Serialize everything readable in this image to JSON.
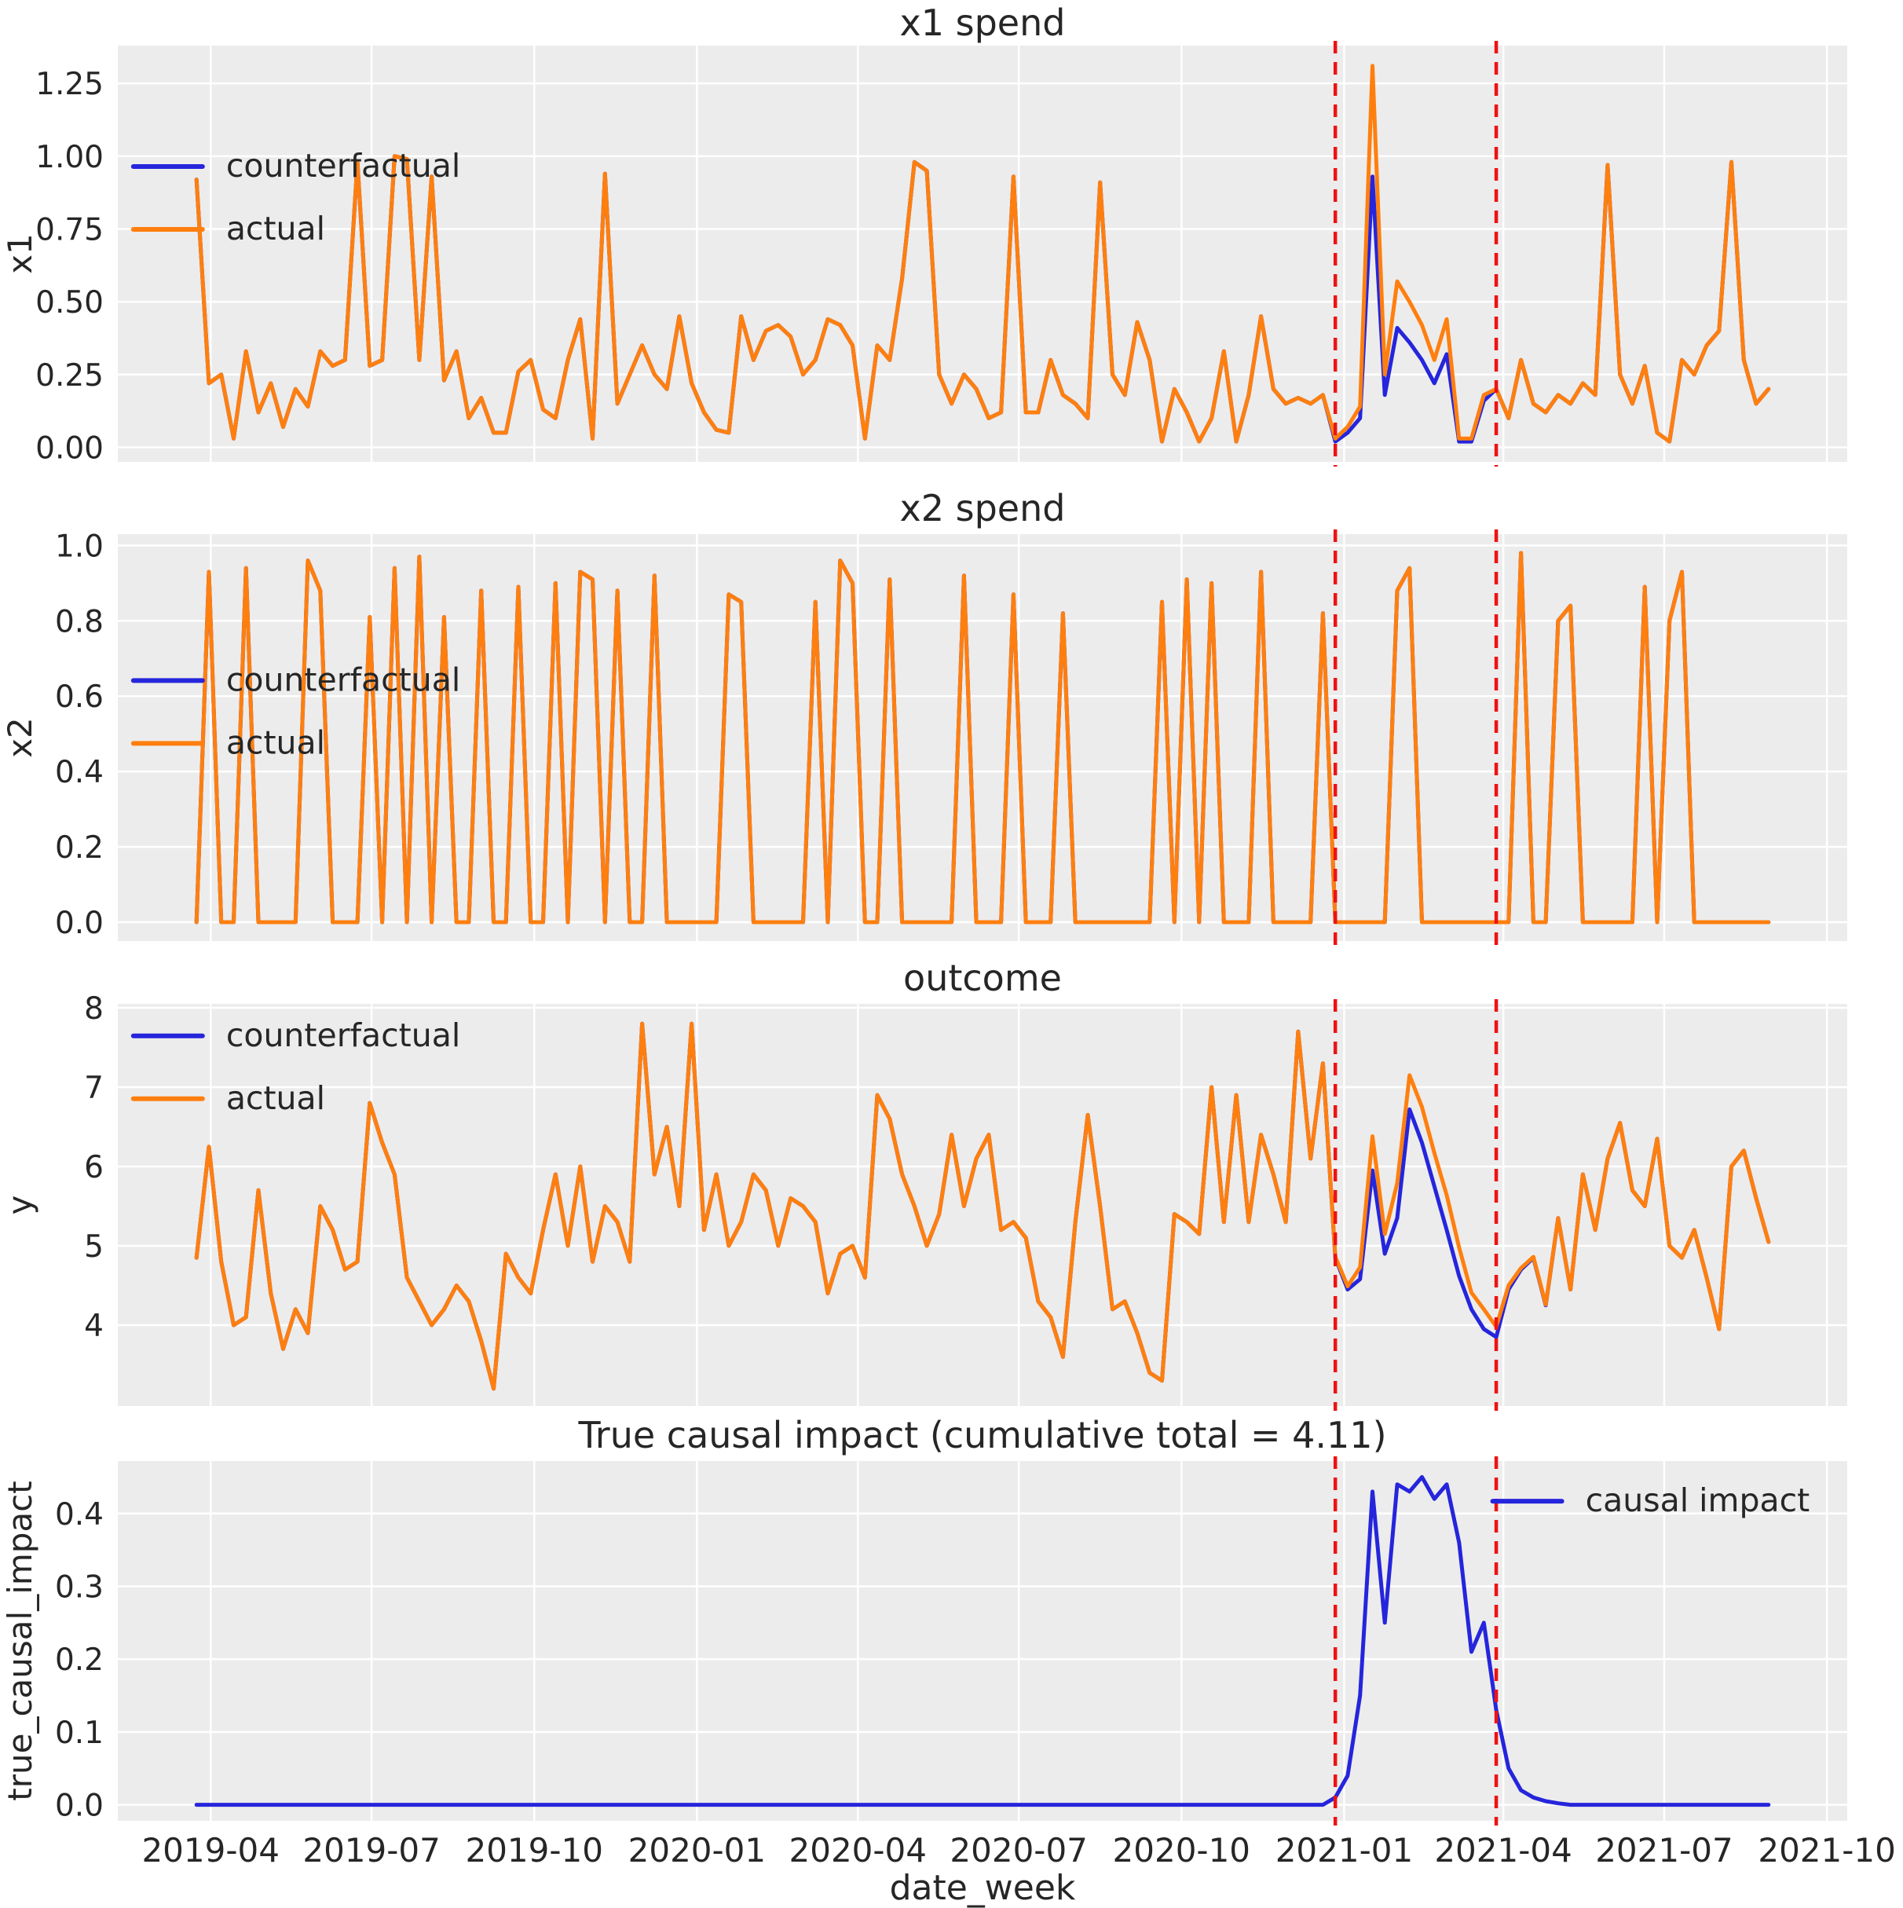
{
  "figure": {
    "background": "#ffffff",
    "axes_background": "#ececec",
    "grid_color": "#ffffff",
    "text_color": "#262626",
    "colors": {
      "counterfactual": "#2525dc",
      "actual": "#ff7f0e",
      "vline": "#ee1212"
    }
  },
  "x_axis": {
    "label": "date_week",
    "ticks": [
      {
        "label": "2019-04",
        "day": 8
      },
      {
        "label": "2019-07",
        "day": 99
      },
      {
        "label": "2019-10",
        "day": 191
      },
      {
        "label": "2020-01",
        "day": 283
      },
      {
        "label": "2020-04",
        "day": 374
      },
      {
        "label": "2020-07",
        "day": 465
      },
      {
        "label": "2020-10",
        "day": 557
      },
      {
        "label": "2021-01",
        "day": 649
      },
      {
        "label": "2021-04",
        "day": 739
      },
      {
        "label": "2021-07",
        "day": 830
      },
      {
        "label": "2021-10",
        "day": 922
      }
    ],
    "domain_days": [
      -44.5,
      933.5
    ],
    "week_step_days": 7
  },
  "intervention": {
    "vline_days": [
      644,
      735
    ],
    "vline_style": "dashed"
  },
  "chart_data": [
    {
      "type": "line",
      "title": "x1 spend",
      "ylabel": "x1",
      "ylim": [
        -0.05,
        1.38
      ],
      "yticks": [
        {
          "v": 0.0,
          "label": "0.00"
        },
        {
          "v": 0.25,
          "label": "0.25"
        },
        {
          "v": 0.5,
          "label": "0.50"
        },
        {
          "v": 0.75,
          "label": "0.75"
        },
        {
          "v": 1.0,
          "label": "1.00"
        },
        {
          "v": 1.25,
          "label": "1.25"
        }
      ],
      "legend_position": "mid-left",
      "series": [
        {
          "name": "counterfactual",
          "color": "#2525dc",
          "values": [
            0.92,
            0.22,
            0.25,
            0.03,
            0.33,
            0.12,
            0.22,
            0.07,
            0.2,
            0.14,
            0.33,
            0.28,
            0.3,
            0.98,
            0.28,
            0.3,
            1.0,
            0.99,
            0.3,
            0.93,
            0.23,
            0.33,
            0.1,
            0.17,
            0.05,
            0.05,
            0.26,
            0.3,
            0.13,
            0.1,
            0.3,
            0.44,
            0.03,
            0.94,
            0.15,
            0.25,
            0.35,
            0.25,
            0.2,
            0.45,
            0.22,
            0.12,
            0.06,
            0.05,
            0.45,
            0.3,
            0.4,
            0.42,
            0.38,
            0.25,
            0.3,
            0.44,
            0.42,
            0.35,
            0.03,
            0.35,
            0.3,
            0.58,
            0.98,
            0.95,
            0.25,
            0.15,
            0.25,
            0.2,
            0.1,
            0.12,
            0.93,
            0.12,
            0.12,
            0.3,
            0.18,
            0.15,
            0.1,
            0.91,
            0.25,
            0.18,
            0.43,
            0.3,
            0.02,
            0.2,
            0.12,
            0.02,
            0.1,
            0.33,
            0.02,
            0.18,
            0.45,
            0.2,
            0.15,
            0.17,
            0.15,
            0.18,
            0.02,
            0.05,
            0.1,
            0.93,
            0.18,
            0.41,
            0.36,
            0.3,
            0.22,
            0.32,
            0.02,
            0.02,
            0.16,
            0.2,
            0.1,
            0.3,
            0.15,
            0.12,
            0.18,
            0.15,
            0.22,
            0.18,
            0.97,
            0.25,
            0.15,
            0.28,
            0.05,
            0.02,
            0.3,
            0.25,
            0.35,
            0.4,
            0.98,
            0.3,
            0.15,
            0.2
          ]
        },
        {
          "name": "actual",
          "color": "#ff7f0e",
          "values": [
            0.92,
            0.22,
            0.25,
            0.03,
            0.33,
            0.12,
            0.22,
            0.07,
            0.2,
            0.14,
            0.33,
            0.28,
            0.3,
            0.98,
            0.28,
            0.3,
            1.0,
            0.99,
            0.3,
            0.93,
            0.23,
            0.33,
            0.1,
            0.17,
            0.05,
            0.05,
            0.26,
            0.3,
            0.13,
            0.1,
            0.3,
            0.44,
            0.03,
            0.94,
            0.15,
            0.25,
            0.35,
            0.25,
            0.2,
            0.45,
            0.22,
            0.12,
            0.06,
            0.05,
            0.45,
            0.3,
            0.4,
            0.42,
            0.38,
            0.25,
            0.3,
            0.44,
            0.42,
            0.35,
            0.03,
            0.35,
            0.3,
            0.58,
            0.98,
            0.95,
            0.25,
            0.15,
            0.25,
            0.2,
            0.1,
            0.12,
            0.93,
            0.12,
            0.12,
            0.3,
            0.18,
            0.15,
            0.1,
            0.91,
            0.25,
            0.18,
            0.43,
            0.3,
            0.02,
            0.2,
            0.12,
            0.02,
            0.1,
            0.33,
            0.02,
            0.18,
            0.45,
            0.2,
            0.15,
            0.17,
            0.15,
            0.18,
            0.03,
            0.07,
            0.14,
            1.31,
            0.25,
            0.57,
            0.5,
            0.42,
            0.3,
            0.44,
            0.03,
            0.03,
            0.18,
            0.2,
            0.1,
            0.3,
            0.15,
            0.12,
            0.18,
            0.15,
            0.22,
            0.18,
            0.97,
            0.25,
            0.15,
            0.28,
            0.05,
            0.02,
            0.3,
            0.25,
            0.35,
            0.4,
            0.98,
            0.3,
            0.15,
            0.2
          ]
        }
      ]
    },
    {
      "type": "line",
      "title": "x2 spend",
      "ylabel": "x2",
      "ylim": [
        -0.05,
        1.03
      ],
      "yticks": [
        {
          "v": 0.0,
          "label": "0.0"
        },
        {
          "v": 0.2,
          "label": "0.2"
        },
        {
          "v": 0.4,
          "label": "0.4"
        },
        {
          "v": 0.6,
          "label": "0.6"
        },
        {
          "v": 0.8,
          "label": "0.8"
        },
        {
          "v": 1.0,
          "label": "1.0"
        }
      ],
      "legend_position": "mid-left",
      "series": [
        {
          "name": "counterfactual",
          "color": "#2525dc",
          "values": [
            0,
            0.93,
            0,
            0,
            0.94,
            0,
            0,
            0,
            0,
            0.96,
            0.88,
            0,
            0,
            0,
            0.81,
            0,
            0.94,
            0,
            0.97,
            0,
            0.81,
            0,
            0,
            0.88,
            0,
            0,
            0.89,
            0,
            0,
            0.9,
            0,
            0.93,
            0.91,
            0,
            0.88,
            0,
            0,
            0.92,
            0,
            0,
            0,
            0,
            0,
            0.87,
            0.85,
            0,
            0,
            0,
            0,
            0,
            0.85,
            0,
            0.96,
            0.9,
            0,
            0,
            0.91,
            0,
            0,
            0,
            0,
            0,
            0.92,
            0,
            0,
            0,
            0.87,
            0,
            0,
            0,
            0.82,
            0,
            0,
            0,
            0,
            0,
            0,
            0,
            0.85,
            0,
            0.91,
            0,
            0.9,
            0,
            0,
            0,
            0.93,
            0,
            0,
            0,
            0,
            0.82,
            0,
            0,
            0,
            0,
            0,
            0.88,
            0.94,
            0,
            0,
            0,
            0,
            0,
            0,
            0,
            0,
            0.98,
            0,
            0,
            0.8,
            0.84,
            0,
            0,
            0,
            0,
            0,
            0.89,
            0,
            0.8,
            0.93,
            0,
            0,
            0,
            0,
            0,
            0,
            0
          ]
        },
        {
          "name": "actual",
          "color": "#ff7f0e",
          "values": [
            0,
            0.93,
            0,
            0,
            0.94,
            0,
            0,
            0,
            0,
            0.96,
            0.88,
            0,
            0,
            0,
            0.81,
            0,
            0.94,
            0,
            0.97,
            0,
            0.81,
            0,
            0,
            0.88,
            0,
            0,
            0.89,
            0,
            0,
            0.9,
            0,
            0.93,
            0.91,
            0,
            0.88,
            0,
            0,
            0.92,
            0,
            0,
            0,
            0,
            0,
            0.87,
            0.85,
            0,
            0,
            0,
            0,
            0,
            0.85,
            0,
            0.96,
            0.9,
            0,
            0,
            0.91,
            0,
            0,
            0,
            0,
            0,
            0.92,
            0,
            0,
            0,
            0.87,
            0,
            0,
            0,
            0.82,
            0,
            0,
            0,
            0,
            0,
            0,
            0,
            0.85,
            0,
            0.91,
            0,
            0.9,
            0,
            0,
            0,
            0.93,
            0,
            0,
            0,
            0,
            0.82,
            0,
            0,
            0,
            0,
            0,
            0.88,
            0.94,
            0,
            0,
            0,
            0,
            0,
            0,
            0,
            0,
            0.98,
            0,
            0,
            0.8,
            0.84,
            0,
            0,
            0,
            0,
            0,
            0.89,
            0,
            0.8,
            0.93,
            0,
            0,
            0,
            0,
            0,
            0,
            0
          ]
        }
      ]
    },
    {
      "type": "line",
      "title": "outcome",
      "ylabel": "y",
      "ylim": [
        2.98,
        8.05
      ],
      "yticks": [
        {
          "v": 4,
          "label": "4"
        },
        {
          "v": 5,
          "label": "5"
        },
        {
          "v": 6,
          "label": "6"
        },
        {
          "v": 7,
          "label": "7"
        },
        {
          "v": 8,
          "label": "8"
        }
      ],
      "legend_position": "top-left",
      "series": [
        {
          "name": "counterfactual",
          "color": "#2525dc",
          "values": [
            4.85,
            6.25,
            4.8,
            4.0,
            4.1,
            5.7,
            4.4,
            3.7,
            4.2,
            3.9,
            5.5,
            5.2,
            4.7,
            4.8,
            6.8,
            6.3,
            5.9,
            4.6,
            4.3,
            4.0,
            4.2,
            4.5,
            4.3,
            3.8,
            3.2,
            4.9,
            4.6,
            4.4,
            5.2,
            5.9,
            5.0,
            6.0,
            4.8,
            5.5,
            5.3,
            4.8,
            7.8,
            5.9,
            6.5,
            5.5,
            7.8,
            5.2,
            5.9,
            5.0,
            5.3,
            5.9,
            5.7,
            5.0,
            5.6,
            5.5,
            5.3,
            4.4,
            4.9,
            5.0,
            4.6,
            6.9,
            6.6,
            5.9,
            5.5,
            5.0,
            5.4,
            6.4,
            5.5,
            6.1,
            6.4,
            5.2,
            5.3,
            5.1,
            4.3,
            4.1,
            3.6,
            5.3,
            6.65,
            5.5,
            4.2,
            4.3,
            3.9,
            3.4,
            3.3,
            5.4,
            5.3,
            5.15,
            7.0,
            5.3,
            6.9,
            5.3,
            6.4,
            5.9,
            5.3,
            7.7,
            6.1,
            7.3,
            4.85,
            4.45,
            4.58,
            5.95,
            4.9,
            5.35,
            6.72,
            6.3,
            5.75,
            5.2,
            4.62,
            4.2,
            3.95,
            3.85,
            4.45,
            4.7,
            4.85,
            4.25,
            5.35,
            4.45,
            5.9,
            5.2,
            6.1,
            6.55,
            5.7,
            5.5,
            6.35,
            5.0,
            4.85,
            5.2,
            4.6,
            3.95,
            6.0,
            6.2,
            5.6,
            5.05
          ]
        },
        {
          "name": "actual",
          "color": "#ff7f0e",
          "values": [
            4.85,
            6.25,
            4.8,
            4.0,
            4.1,
            5.7,
            4.4,
            3.7,
            4.2,
            3.9,
            5.5,
            5.2,
            4.7,
            4.8,
            6.8,
            6.3,
            5.9,
            4.6,
            4.3,
            4.0,
            4.2,
            4.5,
            4.3,
            3.8,
            3.2,
            4.9,
            4.6,
            4.4,
            5.2,
            5.9,
            5.0,
            6.0,
            4.8,
            5.5,
            5.3,
            4.8,
            7.8,
            5.9,
            6.5,
            5.5,
            7.8,
            5.2,
            5.9,
            5.0,
            5.3,
            5.9,
            5.7,
            5.0,
            5.6,
            5.5,
            5.3,
            4.4,
            4.9,
            5.0,
            4.6,
            6.9,
            6.6,
            5.9,
            5.5,
            5.0,
            5.4,
            6.4,
            5.5,
            6.1,
            6.4,
            5.2,
            5.3,
            5.1,
            4.3,
            4.1,
            3.6,
            5.3,
            6.65,
            5.5,
            4.2,
            4.3,
            3.9,
            3.4,
            3.3,
            5.4,
            5.3,
            5.15,
            7.0,
            5.3,
            6.9,
            5.3,
            6.4,
            5.9,
            5.3,
            7.7,
            6.1,
            7.3,
            4.86,
            4.49,
            4.73,
            6.38,
            5.15,
            5.79,
            7.15,
            6.75,
            6.17,
            5.64,
            4.98,
            4.41,
            4.2,
            3.98,
            4.5,
            4.72,
            4.86,
            4.26,
            5.35,
            4.45,
            5.9,
            5.2,
            6.1,
            6.55,
            5.7,
            5.5,
            6.35,
            5.0,
            4.85,
            5.2,
            4.6,
            3.95,
            6.0,
            6.2,
            5.6,
            5.05
          ]
        }
      ]
    },
    {
      "type": "line",
      "title": "True causal impact (cumulative total = 4.11)",
      "ylabel": "true_causal_impact",
      "ylim": [
        -0.022,
        0.472
      ],
      "yticks": [
        {
          "v": 0.0,
          "label": "0.0"
        },
        {
          "v": 0.1,
          "label": "0.1"
        },
        {
          "v": 0.2,
          "label": "0.2"
        },
        {
          "v": 0.3,
          "label": "0.3"
        },
        {
          "v": 0.4,
          "label": "0.4"
        }
      ],
      "legend_position": "top-right",
      "cumulative_total": 4.11,
      "series": [
        {
          "name": "causal impact",
          "color": "#2525dc",
          "values": [
            0,
            0,
            0,
            0,
            0,
            0,
            0,
            0,
            0,
            0,
            0,
            0,
            0,
            0,
            0,
            0,
            0,
            0,
            0,
            0,
            0,
            0,
            0,
            0,
            0,
            0,
            0,
            0,
            0,
            0,
            0,
            0,
            0,
            0,
            0,
            0,
            0,
            0,
            0,
            0,
            0,
            0,
            0,
            0,
            0,
            0,
            0,
            0,
            0,
            0,
            0,
            0,
            0,
            0,
            0,
            0,
            0,
            0,
            0,
            0,
            0,
            0,
            0,
            0,
            0,
            0,
            0,
            0,
            0,
            0,
            0,
            0,
            0,
            0,
            0,
            0,
            0,
            0,
            0,
            0,
            0,
            0,
            0,
            0,
            0,
            0,
            0,
            0,
            0,
            0,
            0,
            0,
            0.01,
            0.04,
            0.15,
            0.43,
            0.25,
            0.44,
            0.43,
            0.45,
            0.42,
            0.44,
            0.36,
            0.21,
            0.25,
            0.13,
            0.05,
            0.02,
            0.01,
            0.005,
            0.002,
            0,
            0,
            0,
            0,
            0,
            0,
            0,
            0,
            0,
            0,
            0,
            0,
            0,
            0,
            0,
            0,
            0
          ]
        }
      ]
    }
  ]
}
